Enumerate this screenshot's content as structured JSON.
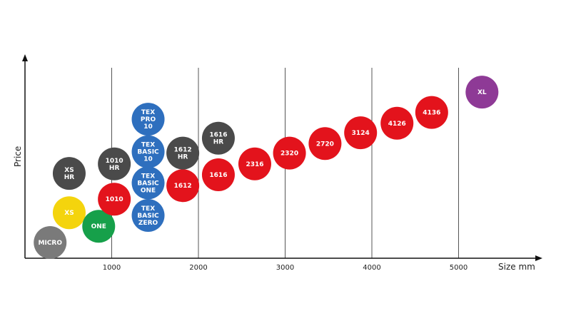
{
  "chart_data": {
    "type": "scatter",
    "title": "",
    "xlabel": "Size mm",
    "ylabel": "Price",
    "xlim": [
      0,
      5000
    ],
    "x_ticks": [
      1000,
      2000,
      3000,
      4000,
      5000
    ],
    "grid": "vertical",
    "y_ticks_shown": false,
    "colors": {
      "grey": "#7a7a7a",
      "yellow": "#f4d40d",
      "green": "#16a04a",
      "dark": "#4a4a4a",
      "red": "#e3131c",
      "blue": "#2e6fbe",
      "purple": "#8e3a96"
    },
    "points": [
      {
        "label": "MICRO",
        "x": 290,
        "y": 0.5,
        "color": "grey"
      },
      {
        "label": "XS",
        "x": 510,
        "y": 1.6,
        "color": "yellow"
      },
      {
        "label": "XS\nHR",
        "x": 510,
        "y": 3.05,
        "color": "dark"
      },
      {
        "label": "ONE",
        "x": 850,
        "y": 1.1,
        "color": "green"
      },
      {
        "label": "1010",
        "x": 1030,
        "y": 2.1,
        "color": "red"
      },
      {
        "label": "1010\nHR",
        "x": 1030,
        "y": 3.4,
        "color": "dark"
      },
      {
        "label": "TEX\nBASIC\nZERO",
        "x": 1420,
        "y": 1.5,
        "color": "blue"
      },
      {
        "label": "TEX\nBASIC\nONE",
        "x": 1420,
        "y": 2.7,
        "color": "blue"
      },
      {
        "label": "TEX\nBASIC\n10",
        "x": 1420,
        "y": 3.85,
        "color": "blue"
      },
      {
        "label": "TEX\nPRO\n10",
        "x": 1420,
        "y": 5.05,
        "color": "blue"
      },
      {
        "label": "1612",
        "x": 1820,
        "y": 2.6,
        "color": "red"
      },
      {
        "label": "1612\nHR",
        "x": 1820,
        "y": 3.8,
        "color": "dark"
      },
      {
        "label": "1616",
        "x": 2230,
        "y": 3.0,
        "color": "red"
      },
      {
        "label": "1616\nHR",
        "x": 2230,
        "y": 4.35,
        "color": "dark"
      },
      {
        "label": "2316",
        "x": 2650,
        "y": 3.4,
        "color": "red"
      },
      {
        "label": "2320",
        "x": 3050,
        "y": 3.8,
        "color": "red"
      },
      {
        "label": "2720",
        "x": 3460,
        "y": 4.15,
        "color": "red"
      },
      {
        "label": "3124",
        "x": 3870,
        "y": 4.55,
        "color": "red"
      },
      {
        "label": "4126",
        "x": 4290,
        "y": 4.9,
        "color": "red"
      },
      {
        "label": "4136",
        "x": 4690,
        "y": 5.3,
        "color": "red"
      },
      {
        "label": "XL",
        "x": 5270,
        "y": 6.05,
        "color": "purple"
      }
    ]
  }
}
